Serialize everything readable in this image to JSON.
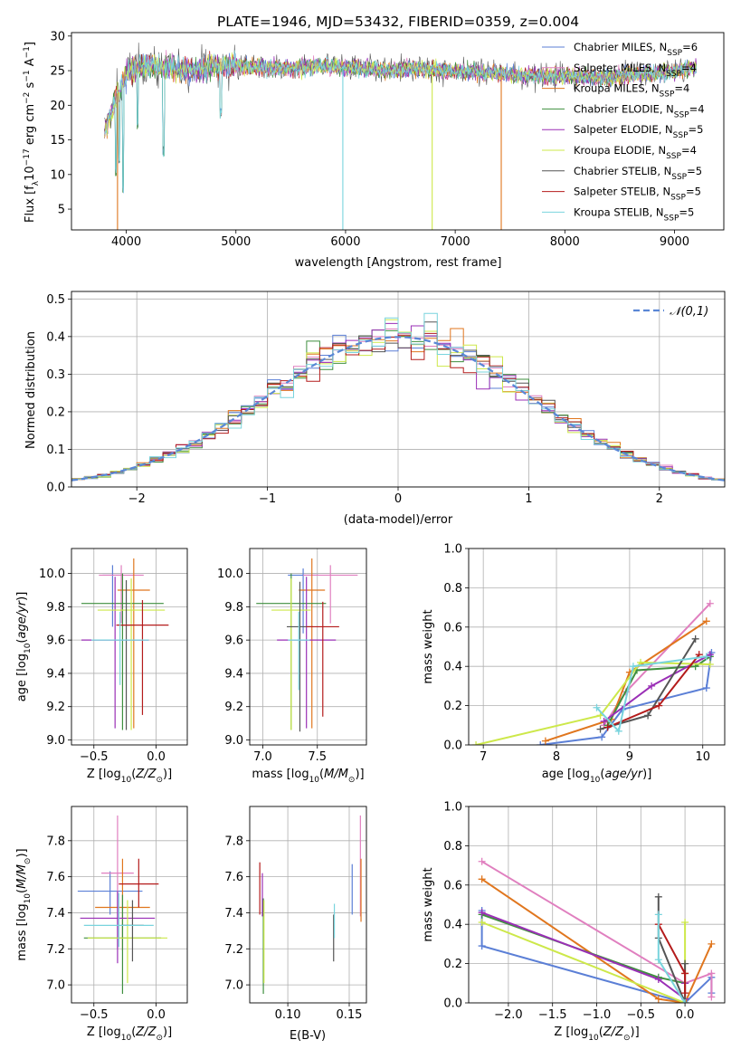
{
  "figure": {
    "title": "PLATE=1946, MJD=53432, FIBERID=0359, z=0.004"
  },
  "chart_data": [
    {
      "id": "spectrum",
      "type": "line",
      "xlabel": "wavelength [Angstrom, rest frame]",
      "ylabel": "Flux [f_λ 10^-17 erg cm^-2 s^-1 A^-1]",
      "xlim": [
        3500,
        9450
      ],
      "ylim": [
        2,
        30.5
      ],
      "xticks": [
        4000,
        5000,
        6000,
        7000,
        8000,
        9000
      ],
      "yticks": [
        5,
        10,
        15,
        20,
        25,
        30
      ],
      "grid": false,
      "legend_position": "top-right",
      "series": [
        {
          "name": "Chabrier MILES, N_SSP=6",
          "color": "#5b7fd6"
        },
        {
          "name": "Salpeter MILES, N_SSP=4",
          "color": "#e07fbf"
        },
        {
          "name": "Kroupa MILES, N_SSP=4",
          "color": "#e0761e"
        },
        {
          "name": "Chabrier ELODIE, N_SSP=4",
          "color": "#3f8f3f"
        },
        {
          "name": "Salpeter ELODIE, N_SSP=5",
          "color": "#9a2fb6"
        },
        {
          "name": "Kroupa ELODIE, N_SSP=4",
          "color": "#cde84a"
        },
        {
          "name": "Chabrier STELIB, N_SSP=5",
          "color": "#555555"
        },
        {
          "name": "Salpeter STELIB, N_SSP=5",
          "color": "#b41b1b"
        },
        {
          "name": "Kroupa STELIB, N_SSP=5",
          "color": "#79d4dd"
        }
      ],
      "continuum": {
        "x": [
          3800,
          3900,
          4000,
          4100,
          4200,
          4400,
          4600,
          4800,
          5000,
          5200,
          5400,
          5600,
          5800,
          6000,
          6200,
          6400,
          6600,
          6800,
          7000,
          7200,
          7400,
          7600,
          7800,
          8000,
          8200,
          8400,
          8600,
          8800,
          9000,
          9200
        ],
        "y": [
          16,
          21,
          24.5,
          25.5,
          25.8,
          25.5,
          25,
          25.6,
          25.8,
          25.5,
          25.3,
          25.5,
          25.7,
          25.5,
          25.2,
          25.1,
          25.3,
          25.2,
          24.9,
          24.9,
          24.6,
          24.4,
          24.2,
          24.3,
          24.1,
          24,
          24.5,
          24.6,
          24.9,
          25.6
        ]
      },
      "absorption_features": [
        {
          "x": 3905,
          "y": 9.5
        },
        {
          "x": 3935,
          "y": 11.5
        },
        {
          "x": 3970,
          "y": 7
        },
        {
          "x": 4102,
          "y": 16
        },
        {
          "x": 4340,
          "y": 12.5
        },
        {
          "x": 4862,
          "y": 18
        }
      ],
      "gaps": [
        {
          "x": 3920,
          "y": 2
        },
        {
          "x": 5975,
          "y": 2
        },
        {
          "x": 6790,
          "y": 2
        },
        {
          "x": 7420,
          "y": 2
        }
      ]
    },
    {
      "id": "residuals",
      "type": "histogram",
      "xlabel": "(data-model)/error",
      "ylabel": "Normed distribution",
      "xlim": [
        -2.5,
        2.5
      ],
      "ylim": [
        0,
        0.52
      ],
      "xticks": [
        -2,
        -1,
        0,
        1,
        2
      ],
      "yticks": [
        0.0,
        0.1,
        0.2,
        0.3,
        0.4,
        0.5
      ],
      "grid": true,
      "legend_position": "top-right",
      "legend": [
        {
          "name": "𝒩(0,1)",
          "color": "#5a87d6",
          "style": "dashed"
        }
      ],
      "bin_width": 0.1
    },
    {
      "id": "age-vs-Z",
      "type": "errorbar",
      "xlabel": "Z [log10(Z/Z⊙)]",
      "ylabel": "age [log10(age/yr)]",
      "xlim": [
        -0.68,
        0.25
      ],
      "ylim": [
        8.97,
        10.15
      ],
      "xticks": [
        -0.5,
        0.0
      ],
      "yticks": [
        9.0,
        9.2,
        9.4,
        9.6,
        9.8,
        10.0
      ],
      "grid": true,
      "points": [
        {
          "color": "#5b7fd6",
          "x": -0.35,
          "y": 9.99,
          "xerr": 0.08,
          "yerr": [
            0.31,
            0.06
          ]
        },
        {
          "color": "#e07fbf",
          "x": -0.28,
          "y": 9.99,
          "xerr": 0.18,
          "yerr": [
            0.29,
            0.06
          ]
        },
        {
          "color": "#e0761e",
          "x": -0.18,
          "y": 9.9,
          "xerr": 0.13,
          "yerr": [
            0.83,
            0.19
          ]
        },
        {
          "color": "#3f8f3f",
          "x": -0.27,
          "y": 9.82,
          "xerr": 0.33,
          "yerr": [
            0.76,
            0.18
          ]
        },
        {
          "color": "#9a2fb6",
          "x": -0.33,
          "y": 9.6,
          "xerr": 0.27,
          "yerr": [
            0.53,
            0.38
          ]
        },
        {
          "color": "#cde84a",
          "x": -0.2,
          "y": 9.78,
          "xerr": 0.27,
          "yerr": [
            0.72,
            0.19
          ]
        },
        {
          "color": "#555555",
          "x": -0.24,
          "y": 9.69,
          "xerr": 0.03,
          "yerr": [
            0.63,
            0.27
          ]
        },
        {
          "color": "#b41b1b",
          "x": -0.11,
          "y": 9.69,
          "xerr": 0.21,
          "yerr": [
            0.54,
            0.15
          ]
        },
        {
          "color": "#79d4dd",
          "x": -0.29,
          "y": 9.6,
          "xerr": 0.23,
          "yerr": [
            0.27,
            0.17
          ]
        }
      ]
    },
    {
      "id": "age-vs-mass",
      "type": "errorbar",
      "xlabel": "mass [log10(M/M⊙)]",
      "ylabel": "",
      "xlim": [
        6.88,
        7.95
      ],
      "ylim": [
        8.97,
        10.15
      ],
      "xticks": [
        7.0,
        7.5
      ],
      "yticks": [
        9.0,
        9.2,
        9.4,
        9.6,
        9.8,
        10.0
      ],
      "grid": true,
      "points": [
        {
          "color": "#5b7fd6",
          "x": 7.37,
          "y": 9.99,
          "xerr": 0.14,
          "yerr": [
            0.35,
            0.04
          ]
        },
        {
          "color": "#e07fbf",
          "x": 7.62,
          "y": 9.99,
          "xerr": 0.25,
          "yerr": [
            0.29,
            0.06
          ]
        },
        {
          "color": "#e0761e",
          "x": 7.45,
          "y": 9.9,
          "xerr": 0.12,
          "yerr": [
            0.83,
            0.19
          ]
        },
        {
          "color": "#3f8f3f",
          "x": 7.26,
          "y": 9.82,
          "xerr": 0.32,
          "yerr": [
            0.76,
            0.18
          ]
        },
        {
          "color": "#9a2fb6",
          "x": 7.4,
          "y": 9.6,
          "xerr": 0.27,
          "yerr": [
            0.53,
            0.38
          ]
        },
        {
          "color": "#cde84a",
          "x": 7.26,
          "y": 9.78,
          "xerr": 0.18,
          "yerr": [
            0.72,
            0.19
          ]
        },
        {
          "color": "#555555",
          "x": 7.34,
          "y": 9.68,
          "xerr": 0.12,
          "yerr": [
            0.63,
            0.27
          ]
        },
        {
          "color": "#b41b1b",
          "x": 7.55,
          "y": 9.68,
          "xerr": 0.15,
          "yerr": [
            0.54,
            0.15
          ]
        },
        {
          "color": "#79d4dd",
          "x": 7.33,
          "y": 9.6,
          "xerr": 0.1,
          "yerr": [
            0.3,
            0.17
          ]
        }
      ]
    },
    {
      "id": "mass-weight-vs-age",
      "type": "line",
      "xlabel": "age [log10(age/yr)]",
      "ylabel": "mass weight",
      "xlim": [
        6.8,
        10.3
      ],
      "ylim": [
        0,
        1
      ],
      "xticks": [
        7,
        8,
        9,
        10
      ],
      "yticks": [
        0.0,
        0.2,
        0.4,
        0.6,
        0.8,
        1.0
      ],
      "grid": true,
      "series": [
        {
          "color": "#5b7fd6",
          "x": [
            7.78,
            8.62,
            8.9,
            10.05,
            10.12
          ],
          "y": [
            0.0,
            0.04,
            0.18,
            0.29,
            0.47
          ]
        },
        {
          "color": "#e07fbf",
          "x": [
            8.65,
            8.95,
            10.1
          ],
          "y": [
            0.1,
            0.27,
            0.72
          ]
        },
        {
          "color": "#e0761e",
          "x": [
            7.85,
            8.75,
            9.0,
            10.05
          ],
          "y": [
            0.02,
            0.13,
            0.37,
            0.63
          ]
        },
        {
          "color": "#3f8f3f",
          "x": [
            8.7,
            9.1,
            9.9,
            10.1
          ],
          "y": [
            0.1,
            0.38,
            0.4,
            0.45
          ]
        },
        {
          "color": "#9a2fb6",
          "x": [
            8.65,
            9.3,
            10.1
          ],
          "y": [
            0.12,
            0.3,
            0.46
          ]
        },
        {
          "color": "#cde84a",
          "x": [
            6.9,
            8.6,
            9.15,
            10.1
          ],
          "y": [
            0.0,
            0.15,
            0.42,
            0.41
          ]
        },
        {
          "color": "#555555",
          "x": [
            8.6,
            9.25,
            9.9
          ],
          "y": [
            0.08,
            0.15,
            0.54
          ]
        },
        {
          "color": "#b41b1b",
          "x": [
            8.7,
            9.4,
            9.95
          ],
          "y": [
            0.09,
            0.2,
            0.46
          ]
        },
        {
          "color": "#79d4dd",
          "x": [
            8.55,
            8.85,
            9.05,
            10.05
          ],
          "y": [
            0.19,
            0.07,
            0.4,
            0.45
          ]
        }
      ]
    },
    {
      "id": "mass-vs-Z",
      "type": "errorbar",
      "xlabel": "Z [log10(Z/Z⊙)]",
      "ylabel": "mass [log10(M/M⊙)]",
      "xlim": [
        -0.68,
        0.25
      ],
      "ylim": [
        6.9,
        7.99
      ],
      "xticks": [
        -0.5,
        0.0
      ],
      "yticks": [
        7.0,
        7.2,
        7.4,
        7.6,
        7.8
      ],
      "grid": true,
      "points": [
        {
          "color": "#5b7fd6",
          "x": -0.37,
          "y": 7.52,
          "xerr": 0.26,
          "yerr": [
            0.13,
            0.11
          ]
        },
        {
          "color": "#e07fbf",
          "x": -0.31,
          "y": 7.62,
          "xerr": 0.13,
          "yerr": [
            0.42,
            0.32
          ]
        },
        {
          "color": "#e0761e",
          "x": -0.27,
          "y": 7.43,
          "xerr": 0.22,
          "yerr": [
            0.24,
            0.27
          ]
        },
        {
          "color": "#3f8f3f",
          "x": -0.27,
          "y": 7.26,
          "xerr": 0.31,
          "yerr": [
            0.31,
            0.24
          ]
        },
        {
          "color": "#9a2fb6",
          "x": -0.31,
          "y": 7.37,
          "xerr": 0.3,
          "yerr": [
            0.25,
            0.15
          ]
        },
        {
          "color": "#cde84a",
          "x": -0.23,
          "y": 7.26,
          "xerr": 0.32,
          "yerr": [
            0.25,
            0.21
          ]
        },
        {
          "color": "#555555",
          "x": -0.19,
          "y": 7.33,
          "xerr": 0.09,
          "yerr": [
            0.2,
            0.14
          ]
        },
        {
          "color": "#b41b1b",
          "x": -0.14,
          "y": 7.56,
          "xerr": 0.16,
          "yerr": [
            0.13,
            0.14
          ]
        },
        {
          "color": "#79d4dd",
          "x": -0.3,
          "y": 7.33,
          "xerr": 0.28,
          "yerr": [
            0.12,
            0.18
          ]
        }
      ]
    },
    {
      "id": "mass-vs-ebv",
      "type": "errorbar",
      "xlabel": "E(B-V)",
      "ylabel": "",
      "xlim": [
        0.069,
        0.164
      ],
      "ylim": [
        6.9,
        7.99
      ],
      "xticks": [
        0.1,
        0.15
      ],
      "yticks": [
        7.0,
        7.2,
        7.4,
        7.6,
        7.8
      ],
      "grid": true,
      "points": [
        {
          "color": "#5b7fd6",
          "x": 0.1524,
          "y": 7.52,
          "xerr": 0.0,
          "yerr": [
            0.13,
            0.15
          ]
        },
        {
          "color": "#e07fbf",
          "x": 0.1591,
          "y": 7.62,
          "xerr": 0.0,
          "yerr": [
            0.24,
            0.32
          ]
        },
        {
          "color": "#e0761e",
          "x": 0.1596,
          "y": 7.43,
          "xerr": 0.0,
          "yerr": [
            0.08,
            0.27
          ]
        },
        {
          "color": "#3f8f3f",
          "x": 0.0801,
          "y": 7.26,
          "xerr": 0.0,
          "yerr": [
            0.31,
            0.22
          ]
        },
        {
          "color": "#9a2fb6",
          "x": 0.0793,
          "y": 7.5,
          "xerr": 0.0,
          "yerr": [
            0.12,
            0.12
          ]
        },
        {
          "color": "#cde84a",
          "x": 0.0806,
          "y": 7.26,
          "xerr": 0.0,
          "yerr": [
            0.25,
            0.21
          ]
        },
        {
          "color": "#555555",
          "x": 0.1373,
          "y": 7.29,
          "xerr": 0.0,
          "yerr": [
            0.16,
            0.1
          ]
        },
        {
          "color": "#b41b1b",
          "x": 0.0772,
          "y": 7.55,
          "xerr": 0.0,
          "yerr": [
            0.16,
            0.13
          ]
        },
        {
          "color": "#79d4dd",
          "x": 0.1379,
          "y": 7.33,
          "xerr": 0.0,
          "yerr": [
            0.07,
            0.12
          ]
        }
      ]
    },
    {
      "id": "mass-weight-vs-Z",
      "type": "line",
      "xlabel": "Z [log10(Z/Z⊙)]",
      "ylabel": "mass weight",
      "xlim": [
        -2.45,
        0.45
      ],
      "ylim": [
        0,
        1
      ],
      "xticks": [
        -2.0,
        -1.5,
        -1.0,
        -0.5,
        0.0
      ],
      "yticks": [
        0.0,
        0.2,
        0.4,
        0.6,
        0.8,
        1.0
      ],
      "grid": true,
      "series": [
        {
          "color": "#5b7fd6",
          "x": [
            -2.3,
            -2.3,
            0.0,
            0.3,
            0.3
          ],
          "y": [
            0.47,
            0.29,
            0.0,
            0.13,
            0.05
          ]
        },
        {
          "color": "#e07fbf",
          "x": [
            -2.3,
            0.0,
            0.3,
            0.3
          ],
          "y": [
            0.72,
            0.1,
            0.15,
            0.03
          ]
        },
        {
          "color": "#e0761e",
          "x": [
            -2.3,
            -0.3,
            0.0,
            0.3
          ],
          "y": [
            0.63,
            0.02,
            0.0,
            0.3
          ]
        },
        {
          "color": "#3f8f3f",
          "x": [
            -2.3,
            -0.3,
            0.0
          ],
          "y": [
            0.45,
            0.13,
            0.1
          ]
        },
        {
          "color": "#9a2fb6",
          "x": [
            -2.3,
            -0.3,
            0.0,
            0.0
          ],
          "y": [
            0.46,
            0.12,
            0.02,
            0.1
          ]
        },
        {
          "color": "#cde84a",
          "x": [
            -2.3,
            0.0,
            0.0,
            0.0
          ],
          "y": [
            0.41,
            0.0,
            0.41,
            0.15
          ]
        },
        {
          "color": "#555555",
          "x": [
            -0.3,
            -0.3,
            0.0,
            0.0
          ],
          "y": [
            0.54,
            0.33,
            0.0,
            0.2
          ]
        },
        {
          "color": "#b41b1b",
          "x": [
            -0.3,
            0.0,
            0.0
          ],
          "y": [
            0.4,
            0.15,
            0.05
          ]
        },
        {
          "color": "#79d4dd",
          "x": [
            -0.3,
            -0.3,
            0.0
          ],
          "y": [
            0.45,
            0.22,
            0.0
          ]
        }
      ]
    }
  ]
}
